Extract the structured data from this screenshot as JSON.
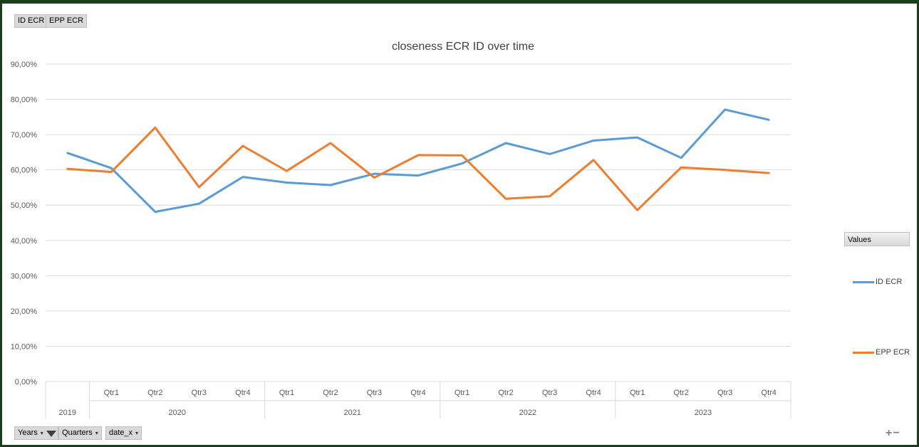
{
  "top_fields": [
    "ID ECR",
    "EPP ECR"
  ],
  "bottom_fields": [
    {
      "label": "Years",
      "icon": "filter-icon"
    },
    {
      "label": "Quarters",
      "icon": "dropdown-icon"
    },
    {
      "label": "date_x",
      "icon": "dropdown-icon"
    }
  ],
  "legend": {
    "title": "Values"
  },
  "zoom": {
    "plus": "+",
    "minus": "−"
  },
  "chart_data": {
    "type": "line",
    "title": "closeness  ECR ID over time",
    "xlabel": "",
    "ylabel": "",
    "ylim": [
      0,
      0.9
    ],
    "y_ticks": [
      "0,00%",
      "10,00%",
      "20,00%",
      "30,00%",
      "40,00%",
      "50,00%",
      "60,00%",
      "70,00%",
      "80,00%",
      "90,00%"
    ],
    "grid": true,
    "legend_position": "right",
    "x": [
      {
        "year": "2019",
        "quarter": ""
      },
      {
        "year": "2020",
        "quarter": "Qtr1"
      },
      {
        "year": "2020",
        "quarter": "Qtr2"
      },
      {
        "year": "2020",
        "quarter": "Qtr3"
      },
      {
        "year": "2020",
        "quarter": "Qtr4"
      },
      {
        "year": "2021",
        "quarter": "Qtr1"
      },
      {
        "year": "2021",
        "quarter": "Qtr2"
      },
      {
        "year": "2021",
        "quarter": "Qtr3"
      },
      {
        "year": "2021",
        "quarter": "Qtr4"
      },
      {
        "year": "2022",
        "quarter": "Qtr1"
      },
      {
        "year": "2022",
        "quarter": "Qtr2"
      },
      {
        "year": "2022",
        "quarter": "Qtr3"
      },
      {
        "year": "2022",
        "quarter": "Qtr4"
      },
      {
        "year": "2023",
        "quarter": "Qtr1"
      },
      {
        "year": "2023",
        "quarter": "Qtr2"
      },
      {
        "year": "2023",
        "quarter": "Qtr3"
      },
      {
        "year": "2023",
        "quarter": "Qtr4"
      }
    ],
    "years": [
      "2019",
      "2020",
      "2021",
      "2022",
      "2023"
    ],
    "series": [
      {
        "name": "ID ECR",
        "color": "#5b9bd5",
        "values": [
          0.648,
          0.605,
          0.481,
          0.504,
          0.58,
          0.564,
          0.557,
          0.589,
          0.584,
          0.618,
          0.676,
          0.645,
          0.683,
          0.692,
          0.634,
          0.771,
          0.742
        ]
      },
      {
        "name": "EPP ECR",
        "color": "#ed7d31",
        "values": [
          0.603,
          0.594,
          0.72,
          0.551,
          0.668,
          0.597,
          0.676,
          0.578,
          0.642,
          0.641,
          0.518,
          0.525,
          0.628,
          0.486,
          0.607,
          0.6,
          0.591
        ]
      }
    ]
  }
}
